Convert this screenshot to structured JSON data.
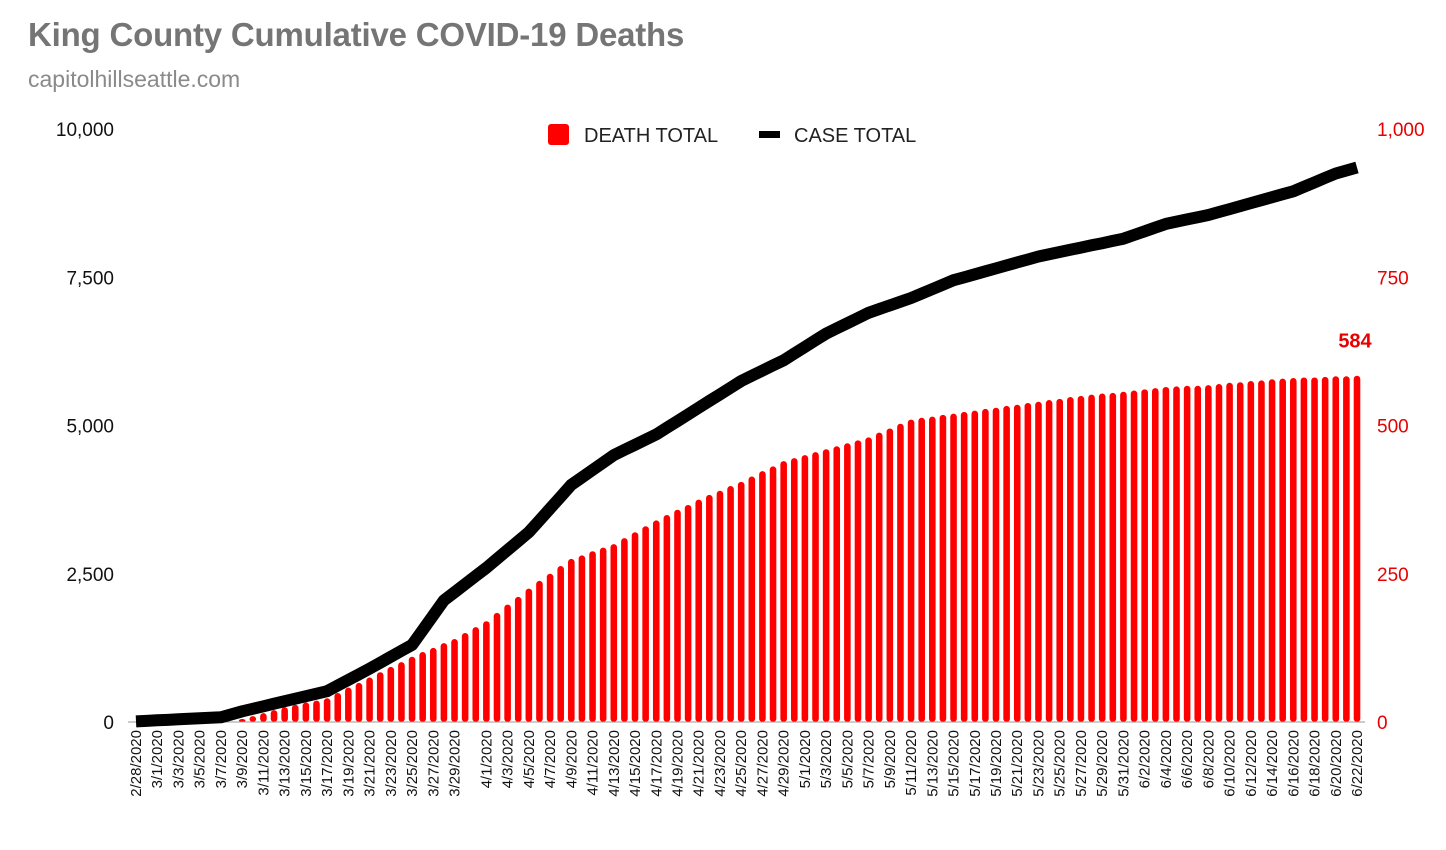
{
  "header": {
    "title": "King County Cumulative COVID-19 Deaths",
    "subtitle": "capitolhillseattle.com"
  },
  "colors": {
    "deaths": "#ff0000",
    "cases": "#000000",
    "right_axis": "#e80000"
  },
  "chart_data": {
    "type": "bar",
    "combo": "bar (deaths, right axis) + line (cases, left axis)",
    "title": "King County Cumulative COVID-19 Deaths",
    "subtitle": "capitolhillseattle.com",
    "xlabel": "",
    "ylabel_left": "",
    "ylabel_right": "",
    "ylim_left": [
      0,
      10000
    ],
    "ylim_right": [
      0,
      1000
    ],
    "yticks_left": [
      "0",
      "2,500",
      "5,000",
      "7,500",
      "10,000"
    ],
    "yticks_right": [
      "0",
      "250",
      "500",
      "750",
      "1,000"
    ],
    "grid": false,
    "legend": {
      "placement": "top-center",
      "entries": [
        "DEATH TOTAL",
        "CASE TOTAL"
      ]
    },
    "annotations": [
      {
        "text": "584",
        "series": "DEATH TOTAL",
        "at": "6/22/2020"
      }
    ],
    "start_date": "2/28/2020",
    "end_date": "6/22/2020",
    "x_tick_labels": [
      "2/28/2020",
      "3/1/2020",
      "3/3/2020",
      "3/5/2020",
      "3/7/2020",
      "3/9/2020",
      "3/11/2020",
      "3/13/2020",
      "3/15/2020",
      "3/17/2020",
      "3/19/2020",
      "3/21/2020",
      "3/23/2020",
      "3/25/2020",
      "3/27/2020",
      "3/29/2020",
      "4/1/2020",
      "4/3/2020",
      "4/5/2020",
      "4/7/2020",
      "4/9/2020",
      "4/11/2020",
      "4/13/2020",
      "4/15/2020",
      "4/17/2020",
      "4/19/2020",
      "4/21/2020",
      "4/23/2020",
      "4/25/2020",
      "4/27/2020",
      "4/29/2020",
      "5/1/2020",
      "5/3/2020",
      "5/5/2020",
      "5/7/2020",
      "5/9/2020",
      "5/11/2020",
      "5/13/2020",
      "5/15/2020",
      "5/17/2020",
      "5/19/2020",
      "5/21/2020",
      "5/23/2020",
      "5/25/2020",
      "5/27/2020",
      "5/29/2020",
      "5/31/2020",
      "6/2/2020",
      "6/4/2020",
      "6/6/2020",
      "6/8/2020",
      "6/10/2020",
      "6/12/2020",
      "6/14/2020",
      "6/16/2020",
      "6/18/2020",
      "6/20/2020",
      "6/22/2020"
    ],
    "series": [
      {
        "name": "DEATH TOTAL",
        "axis": "right",
        "type": "bar",
        "keypoints": [
          [
            "2/28/2020",
            0
          ],
          [
            "3/8/2020",
            0
          ],
          [
            "3/9/2020",
            5
          ],
          [
            "3/13/2020",
            25
          ],
          [
            "3/17/2020",
            40
          ],
          [
            "3/21/2020",
            75
          ],
          [
            "3/25/2020",
            110
          ],
          [
            "3/29/2020",
            140
          ],
          [
            "4/1/2020",
            170
          ],
          [
            "4/5/2020",
            225
          ],
          [
            "4/9/2020",
            275
          ],
          [
            "4/13/2020",
            300
          ],
          [
            "4/17/2020",
            340
          ],
          [
            "4/21/2020",
            375
          ],
          [
            "4/25/2020",
            405
          ],
          [
            "4/29/2020",
            440
          ],
          [
            "5/3/2020",
            460
          ],
          [
            "5/7/2020",
            480
          ],
          [
            "5/11/2020",
            510
          ],
          [
            "5/15/2020",
            520
          ],
          [
            "5/19/2020",
            530
          ],
          [
            "5/23/2020",
            540
          ],
          [
            "5/27/2020",
            550
          ],
          [
            "5/31/2020",
            557
          ],
          [
            "6/4/2020",
            565
          ],
          [
            "6/8/2020",
            568
          ],
          [
            "6/12/2020",
            575
          ],
          [
            "6/16/2020",
            580
          ],
          [
            "6/22/2020",
            584
          ]
        ]
      },
      {
        "name": "CASE TOTAL",
        "axis": "left",
        "type": "line",
        "keypoints": [
          [
            "2/28/2020",
            10
          ],
          [
            "3/7/2020",
            80
          ],
          [
            "3/9/2020",
            180
          ],
          [
            "3/13/2020",
            350
          ],
          [
            "3/17/2020",
            520
          ],
          [
            "3/21/2020",
            900
          ],
          [
            "3/25/2020",
            1300
          ],
          [
            "3/28/2020",
            2050
          ],
          [
            "4/1/2020",
            2600
          ],
          [
            "4/5/2020",
            3200
          ],
          [
            "4/9/2020",
            4000
          ],
          [
            "4/13/2020",
            4500
          ],
          [
            "4/17/2020",
            4850
          ],
          [
            "4/21/2020",
            5300
          ],
          [
            "4/25/2020",
            5750
          ],
          [
            "4/29/2020",
            6100
          ],
          [
            "5/3/2020",
            6550
          ],
          [
            "5/7/2020",
            6900
          ],
          [
            "5/11/2020",
            7150
          ],
          [
            "5/15/2020",
            7450
          ],
          [
            "5/19/2020",
            7650
          ],
          [
            "5/23/2020",
            7850
          ],
          [
            "5/27/2020",
            8000
          ],
          [
            "5/31/2020",
            8150
          ],
          [
            "6/4/2020",
            8400
          ],
          [
            "6/8/2020",
            8550
          ],
          [
            "6/12/2020",
            8750
          ],
          [
            "6/16/2020",
            8950
          ],
          [
            "6/20/2020",
            9250
          ],
          [
            "6/22/2020",
            9350
          ]
        ]
      }
    ]
  }
}
